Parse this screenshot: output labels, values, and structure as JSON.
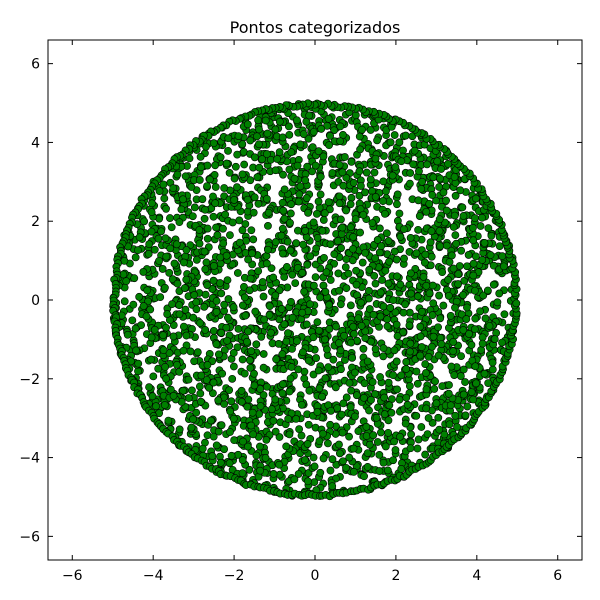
{
  "chart_data": {
    "type": "scatter",
    "title": "Pontos categorizados",
    "xlabel": "",
    "ylabel": "",
    "xlim": [
      -6.6,
      6.6
    ],
    "ylim": [
      -6.6,
      6.6
    ],
    "x_ticks": [
      -6,
      -4,
      -2,
      0,
      2,
      4,
      6
    ],
    "y_ticks": [
      -6,
      -4,
      -2,
      0,
      2,
      4,
      6
    ],
    "x_tick_labels": [
      "−6",
      "−4",
      "−2",
      "0",
      "2",
      "4",
      "6"
    ],
    "y_tick_labels": [
      "−6",
      "−4",
      "−2",
      "0",
      "2",
      "4",
      "6"
    ],
    "grid": false,
    "legend": "none",
    "series": [
      {
        "marker": "circle",
        "color": "#008000",
        "edge_color": "#000000",
        "region": "disk",
        "center": [
          0,
          0
        ],
        "radius": 5.0,
        "point_count_estimate": 3000
      }
    ]
  }
}
